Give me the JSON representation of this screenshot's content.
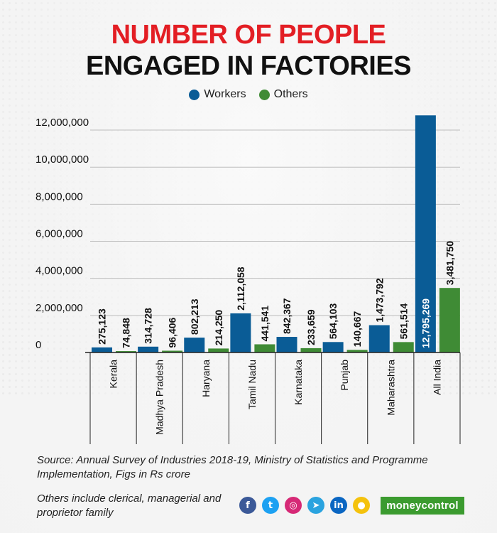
{
  "title_line1": "NUMBER OF PEOPLE",
  "title_line2": "ENGAGED IN FACTORIES",
  "colors": {
    "workers": "#0a5c96",
    "others": "#3f8b35",
    "title_red": "#e31e24",
    "brand_green": "#3b9b2f"
  },
  "chart_data": {
    "type": "bar",
    "title": "NUMBER OF PEOPLE ENGAGED IN FACTORIES",
    "categories": [
      "Kerala",
      "Madhya Pradesh",
      "Haryana",
      "Tamil Nadu",
      "Karnataka",
      "Punjab",
      "Maharashtra",
      "All India"
    ],
    "series": [
      {
        "name": "Workers",
        "values": [
          275123,
          314728,
          802213,
          2112058,
          842367,
          564103,
          1473792,
          12795269
        ],
        "labels": [
          "275,123",
          "314,728",
          "802,213",
          "2,112,058",
          "842,367",
          "564,103",
          "1,473,792",
          "12,795,269"
        ]
      },
      {
        "name": "Others",
        "values": [
          74848,
          96406,
          214250,
          441541,
          233659,
          140667,
          561514,
          3481750
        ],
        "labels": [
          "74,848",
          "96,406",
          "214,250",
          "441,541",
          "233,659",
          "140,667",
          "561,514",
          "3,481,750"
        ]
      }
    ],
    "yticks": [
      0,
      2000000,
      4000000,
      6000000,
      8000000,
      10000000,
      12000000
    ],
    "ytick_labels": [
      "0",
      "2,000,000",
      "4,000,000",
      "6,000,000",
      "8,000,000",
      "10,000,000",
      "12,000,000"
    ],
    "ylim": [
      0,
      12500000
    ],
    "grid": true,
    "legend": "top-center"
  },
  "source_note": "Source:   Annual Survey of Industries 2018-19, Ministry of Statistics and Programme Implementation, Figs in Rs crore",
  "others_note": "Others include clerical, managerial and proprietor family",
  "social": [
    {
      "icon": "facebook-icon",
      "glyph": "f",
      "color": "#3b5998"
    },
    {
      "icon": "twitter-icon",
      "glyph": "t",
      "color": "#1da1f2"
    },
    {
      "icon": "instagram-icon",
      "glyph": "◎",
      "color": "#d62976"
    },
    {
      "icon": "telegram-icon",
      "glyph": "➤",
      "color": "#2aa3df"
    },
    {
      "icon": "linkedin-icon",
      "glyph": "in",
      "color": "#0a66c2"
    },
    {
      "icon": "koo-icon",
      "glyph": "●",
      "color": "#f4c20d"
    }
  ],
  "brand": "moneycontrol"
}
